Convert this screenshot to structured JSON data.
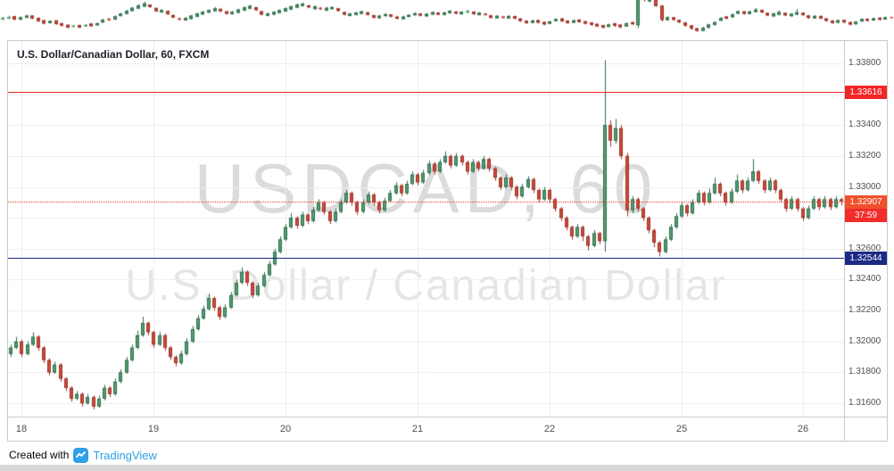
{
  "header": {
    "title": "U.S. Dollar/Canadian Dollar, 60, FXCM"
  },
  "watermark": {
    "line1": "USDCAD, 60",
    "line2": "U.S. Dollar / Canadian Dollar"
  },
  "footer": {
    "created_with": "Created with",
    "brand": "TradingView"
  },
  "colors": {
    "up_body": "#539e70",
    "up_border": "#2f6e4e",
    "down_body": "#d0493b",
    "down_border": "#9c342a",
    "grid": "#ececec",
    "axis_text": "#4f4f4f",
    "border": "#c9c9c9",
    "brand_blue": "#2f9fe6",
    "background": "#ffffff",
    "bottom_bar": "#d8d8d8"
  },
  "chart_data": {
    "type": "candlestick",
    "title": "U.S. Dollar/Canadian Dollar, 60, FXCM",
    "symbol": "USDCAD",
    "interval": "60",
    "exchange": "FXCM",
    "grid": true,
    "y_axis": {
      "min": 1.31514,
      "max": 1.33944,
      "tick_step": 0.002,
      "ticks": [
        "1.33800",
        "1.33600",
        "1.33400",
        "1.33200",
        "1.33000",
        "1.32800",
        "1.32600",
        "1.32400",
        "1.32200",
        "1.32000",
        "1.31800",
        "1.31600"
      ]
    },
    "x_ticks": [
      {
        "label": "18",
        "index": 2
      },
      {
        "label": "19",
        "index": 26
      },
      {
        "label": "20",
        "index": 50
      },
      {
        "label": "21",
        "index": 74
      },
      {
        "label": "22",
        "index": 98
      },
      {
        "label": "25",
        "index": 122
      },
      {
        "label": "26",
        "index": 144
      }
    ],
    "levels": {
      "resistance": {
        "value": 1.33616,
        "label": "1.33616",
        "color": "#f02626"
      },
      "support": {
        "value": 1.32544,
        "label": "1.32544",
        "color": "#1b2a85"
      },
      "last_price": {
        "value": 1.32907,
        "label": "1.32907",
        "line_color": "#ee3b28",
        "badge_color": "#f0502c",
        "countdown": "37:59",
        "countdown_color": "#f22b2b"
      }
    },
    "candles": [
      [
        1.3192,
        1.3198,
        1.319,
        1.3196
      ],
      [
        1.3196,
        1.3203,
        1.3195,
        1.32
      ],
      [
        1.32,
        1.3201,
        1.319,
        1.3192
      ],
      [
        1.3192,
        1.32,
        1.3191,
        1.3198
      ],
      [
        1.3198,
        1.3206,
        1.3197,
        1.3203
      ],
      [
        1.3203,
        1.3204,
        1.3194,
        1.3196
      ],
      [
        1.3196,
        1.3197,
        1.3186,
        1.3188
      ],
      [
        1.3188,
        1.3189,
        1.3178,
        1.318
      ],
      [
        1.318,
        1.3187,
        1.3179,
        1.3185
      ],
      [
        1.3185,
        1.3186,
        1.3174,
        1.3176
      ],
      [
        1.3176,
        1.3177,
        1.3168,
        1.317
      ],
      [
        1.317,
        1.3171,
        1.3161,
        1.3163
      ],
      [
        1.3163,
        1.3168,
        1.3162,
        1.3166
      ],
      [
        1.3166,
        1.3167,
        1.3158,
        1.316
      ],
      [
        1.316,
        1.3166,
        1.3159,
        1.3164
      ],
      [
        1.3164,
        1.3165,
        1.3156,
        1.3158
      ],
      [
        1.3158,
        1.3165,
        1.3157,
        1.3163
      ],
      [
        1.3163,
        1.3172,
        1.3162,
        1.317
      ],
      [
        1.317,
        1.3171,
        1.3164,
        1.3166
      ],
      [
        1.3166,
        1.3176,
        1.3165,
        1.3174
      ],
      [
        1.3174,
        1.3182,
        1.3173,
        1.318
      ],
      [
        1.318,
        1.319,
        1.3179,
        1.3188
      ],
      [
        1.3188,
        1.3198,
        1.3187,
        1.3196
      ],
      [
        1.3196,
        1.3207,
        1.3195,
        1.3204
      ],
      [
        1.3204,
        1.3216,
        1.3203,
        1.3212
      ],
      [
        1.3212,
        1.3213,
        1.3204,
        1.3206
      ],
      [
        1.3206,
        1.3207,
        1.3196,
        1.3198
      ],
      [
        1.3198,
        1.3206,
        1.3197,
        1.3204
      ],
      [
        1.3204,
        1.3205,
        1.3194,
        1.3196
      ],
      [
        1.3196,
        1.3197,
        1.3188,
        1.319
      ],
      [
        1.319,
        1.3191,
        1.3184,
        1.3186
      ],
      [
        1.3186,
        1.3194,
        1.3185,
        1.3192
      ],
      [
        1.3192,
        1.3202,
        1.3191,
        1.32
      ],
      [
        1.32,
        1.321,
        1.3199,
        1.3208
      ],
      [
        1.3208,
        1.3217,
        1.3207,
        1.3215
      ],
      [
        1.3215,
        1.3223,
        1.3214,
        1.3221
      ],
      [
        1.3221,
        1.3231,
        1.322,
        1.3228
      ],
      [
        1.3228,
        1.3229,
        1.322,
        1.3222
      ],
      [
        1.3222,
        1.3223,
        1.3214,
        1.3216
      ],
      [
        1.3216,
        1.3224,
        1.3215,
        1.3222
      ],
      [
        1.3222,
        1.3232,
        1.3221,
        1.323
      ],
      [
        1.323,
        1.324,
        1.3229,
        1.3238
      ],
      [
        1.3238,
        1.3248,
        1.3237,
        1.3245
      ],
      [
        1.3245,
        1.3246,
        1.3236,
        1.3238
      ],
      [
        1.3238,
        1.3239,
        1.3228,
        1.323
      ],
      [
        1.323,
        1.3238,
        1.3229,
        1.3236
      ],
      [
        1.3236,
        1.3245,
        1.3235,
        1.3243
      ],
      [
        1.3243,
        1.3252,
        1.3242,
        1.325
      ],
      [
        1.325,
        1.326,
        1.3249,
        1.3258
      ],
      [
        1.3258,
        1.3268,
        1.3257,
        1.3266
      ],
      [
        1.3266,
        1.3276,
        1.3265,
        1.3274
      ],
      [
        1.3274,
        1.3283,
        1.3273,
        1.328
      ],
      [
        1.328,
        1.3281,
        1.3273,
        1.3275
      ],
      [
        1.3275,
        1.3284,
        1.3274,
        1.3282
      ],
      [
        1.3282,
        1.3283,
        1.3276,
        1.3278
      ],
      [
        1.3278,
        1.3287,
        1.3277,
        1.3285
      ],
      [
        1.3285,
        1.3292,
        1.3284,
        1.329
      ],
      [
        1.329,
        1.3291,
        1.3282,
        1.3284
      ],
      [
        1.3284,
        1.3285,
        1.3276,
        1.3278
      ],
      [
        1.3278,
        1.3286,
        1.3277,
        1.3284
      ],
      [
        1.3284,
        1.3292,
        1.3283,
        1.329
      ],
      [
        1.329,
        1.3298,
        1.3289,
        1.3296
      ],
      [
        1.3296,
        1.3297,
        1.3288,
        1.329
      ],
      [
        1.329,
        1.3291,
        1.3282,
        1.3284
      ],
      [
        1.3284,
        1.3292,
        1.3283,
        1.329
      ],
      [
        1.329,
        1.3297,
        1.3289,
        1.3295
      ],
      [
        1.3295,
        1.3296,
        1.3288,
        1.329
      ],
      [
        1.329,
        1.3291,
        1.3283,
        1.3285
      ],
      [
        1.3285,
        1.3293,
        1.3284,
        1.3291
      ],
      [
        1.3291,
        1.3298,
        1.329,
        1.3296
      ],
      [
        1.3296,
        1.3303,
        1.3295,
        1.3301
      ],
      [
        1.3301,
        1.3302,
        1.3294,
        1.3296
      ],
      [
        1.3296,
        1.3304,
        1.3295,
        1.3302
      ],
      [
        1.3302,
        1.331,
        1.3301,
        1.3308
      ],
      [
        1.3308,
        1.3309,
        1.3301,
        1.3303
      ],
      [
        1.3303,
        1.3311,
        1.3302,
        1.3309
      ],
      [
        1.3309,
        1.3317,
        1.3308,
        1.3315
      ],
      [
        1.3315,
        1.3316,
        1.3308,
        1.331
      ],
      [
        1.331,
        1.3318,
        1.3309,
        1.3316
      ],
      [
        1.3316,
        1.3323,
        1.3315,
        1.332
      ],
      [
        1.332,
        1.3321,
        1.3312,
        1.3314
      ],
      [
        1.3314,
        1.3322,
        1.3313,
        1.332
      ],
      [
        1.332,
        1.3321,
        1.3314,
        1.3316
      ],
      [
        1.3316,
        1.3317,
        1.3308,
        1.331
      ],
      [
        1.331,
        1.3318,
        1.3309,
        1.3316
      ],
      [
        1.3316,
        1.3317,
        1.331,
        1.3312
      ],
      [
        1.3312,
        1.332,
        1.3311,
        1.3318
      ],
      [
        1.3318,
        1.3319,
        1.331,
        1.3312
      ],
      [
        1.3312,
        1.3313,
        1.3304,
        1.3306
      ],
      [
        1.3306,
        1.3307,
        1.3298,
        1.33
      ],
      [
        1.33,
        1.3308,
        1.3299,
        1.3306
      ],
      [
        1.3306,
        1.3307,
        1.3298,
        1.33
      ],
      [
        1.33,
        1.3301,
        1.3292,
        1.3294
      ],
      [
        1.3294,
        1.3302,
        1.3293,
        1.33
      ],
      [
        1.33,
        1.3307,
        1.3299,
        1.3305
      ],
      [
        1.3305,
        1.3306,
        1.3296,
        1.3298
      ],
      [
        1.3298,
        1.3299,
        1.329,
        1.3292
      ],
      [
        1.3292,
        1.33,
        1.3291,
        1.3298
      ],
      [
        1.3298,
        1.3299,
        1.329,
        1.3292
      ],
      [
        1.3292,
        1.3293,
        1.3284,
        1.3286
      ],
      [
        1.3286,
        1.3287,
        1.3278,
        1.328
      ],
      [
        1.328,
        1.3281,
        1.3272,
        1.3274
      ],
      [
        1.3274,
        1.3275,
        1.3266,
        1.3268
      ],
      [
        1.3268,
        1.3276,
        1.3267,
        1.3274
      ],
      [
        1.3274,
        1.3275,
        1.3265,
        1.3268
      ],
      [
        1.3268,
        1.3269,
        1.3259,
        1.3262
      ],
      [
        1.3262,
        1.3272,
        1.3261,
        1.327
      ],
      [
        1.327,
        1.3271,
        1.3263,
        1.3265
      ],
      [
        1.3265,
        1.3382,
        1.3258,
        1.334
      ],
      [
        1.334,
        1.3343,
        1.3326,
        1.333
      ],
      [
        1.333,
        1.3344,
        1.3328,
        1.3338
      ],
      [
        1.3338,
        1.334,
        1.3318,
        1.332
      ],
      [
        1.332,
        1.3322,
        1.3281,
        1.3285
      ],
      [
        1.3285,
        1.3294,
        1.3283,
        1.3292
      ],
      [
        1.3292,
        1.3293,
        1.3284,
        1.3286
      ],
      [
        1.3286,
        1.3287,
        1.3278,
        1.328
      ],
      [
        1.328,
        1.3281,
        1.327,
        1.3272
      ],
      [
        1.3272,
        1.3273,
        1.3261,
        1.3264
      ],
      [
        1.3264,
        1.3265,
        1.3255,
        1.3258
      ],
      [
        1.3258,
        1.3268,
        1.3257,
        1.3266
      ],
      [
        1.3266,
        1.3276,
        1.3265,
        1.3274
      ],
      [
        1.3274,
        1.3283,
        1.3273,
        1.3281
      ],
      [
        1.3281,
        1.329,
        1.328,
        1.3288
      ],
      [
        1.3288,
        1.3289,
        1.3281,
        1.3283
      ],
      [
        1.3283,
        1.3292,
        1.3282,
        1.329
      ],
      [
        1.329,
        1.3298,
        1.3289,
        1.3296
      ],
      [
        1.3296,
        1.3297,
        1.3288,
        1.329
      ],
      [
        1.329,
        1.3299,
        1.3289,
        1.3296
      ],
      [
        1.3296,
        1.3306,
        1.3295,
        1.3302
      ],
      [
        1.3302,
        1.3303,
        1.3294,
        1.3296
      ],
      [
        1.3296,
        1.3297,
        1.3288,
        1.329
      ],
      [
        1.329,
        1.3299,
        1.3289,
        1.3297
      ],
      [
        1.3297,
        1.3308,
        1.3296,
        1.3304
      ],
      [
        1.3304,
        1.3305,
        1.3296,
        1.3298
      ],
      [
        1.3298,
        1.3306,
        1.3297,
        1.3304
      ],
      [
        1.3304,
        1.3318,
        1.3303,
        1.331
      ],
      [
        1.331,
        1.3311,
        1.3302,
        1.3304
      ],
      [
        1.3304,
        1.3305,
        1.3296,
        1.3298
      ],
      [
        1.3298,
        1.3306,
        1.3297,
        1.3304
      ],
      [
        1.3304,
        1.3305,
        1.3296,
        1.3298
      ],
      [
        1.3298,
        1.3299,
        1.329,
        1.3292
      ],
      [
        1.3292,
        1.3293,
        1.3284,
        1.3286
      ],
      [
        1.3286,
        1.3294,
        1.3285,
        1.3292
      ],
      [
        1.3292,
        1.3293,
        1.3284,
        1.3286
      ],
      [
        1.3286,
        1.3287,
        1.3278,
        1.328
      ],
      [
        1.328,
        1.3288,
        1.3279,
        1.3286
      ],
      [
        1.3286,
        1.3294,
        1.3285,
        1.3292
      ],
      [
        1.3292,
        1.3293,
        1.3285,
        1.3287
      ],
      [
        1.3287,
        1.3294,
        1.3286,
        1.3292
      ],
      [
        1.3292,
        1.3293,
        1.3285,
        1.3287
      ],
      [
        1.3287,
        1.3294,
        1.3286,
        1.3292
      ],
      [
        1.3292,
        1.3293,
        1.3288,
        1.32907
      ]
    ]
  }
}
